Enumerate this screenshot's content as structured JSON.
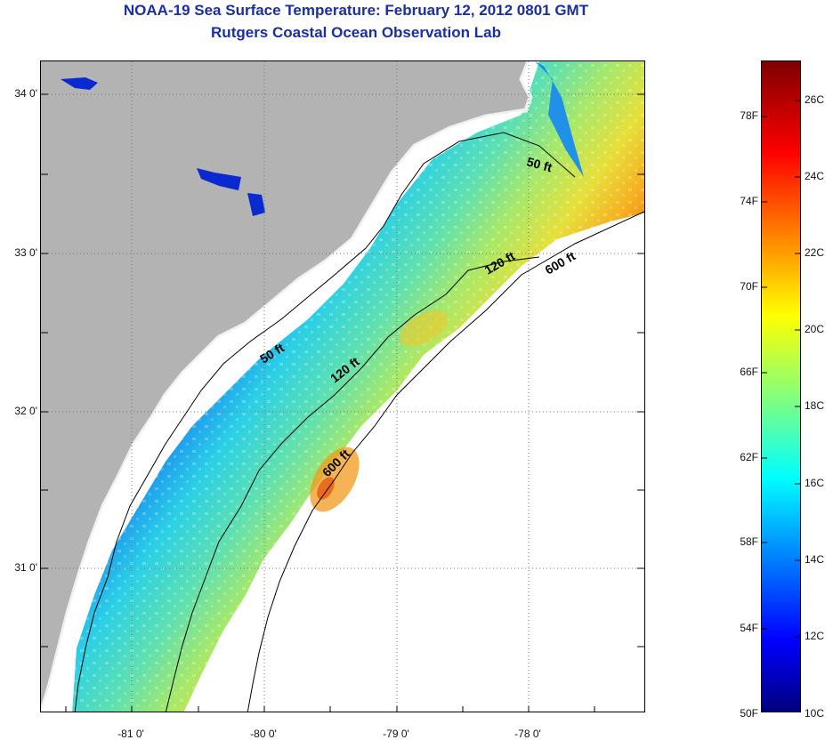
{
  "title": {
    "line1": "NOAA-19 Sea Surface Temperature:  February 12, 2012 0801 GMT",
    "line2": "Rutgers Coastal Ocean Observation Lab"
  },
  "map": {
    "lat_labels": [
      {
        "id": "lat-34",
        "text": "34 0'",
        "lat": 34.0
      },
      {
        "id": "lat-33",
        "text": "33 0'",
        "lat": 33.0
      },
      {
        "id": "lat-32",
        "text": "32 0'",
        "lat": 32.0
      },
      {
        "id": "lat-31",
        "text": "31 0'",
        "lat": 31.0
      }
    ],
    "lon_labels": [
      {
        "id": "lon-81",
        "text": "-81 0'",
        "lon": -81.0
      },
      {
        "id": "lon-80",
        "text": "-80 0'",
        "lon": -80.0
      },
      {
        "id": "lon-79",
        "text": "-79 0'",
        "lon": -79.0
      },
      {
        "id": "lon-78",
        "text": "-78 0'",
        "lon": -78.0
      }
    ],
    "contour_labels": [
      "50 ft",
      "50 ft",
      "120 ft",
      "120 ft",
      "600 ft",
      "600 ft"
    ],
    "land_color": "#b3b3b3",
    "nodata_color": "#ffffff"
  },
  "colorbar": {
    "f_labels": [
      "78F",
      "74F",
      "70F",
      "66F",
      "62F",
      "58F",
      "54F",
      "50F"
    ],
    "c_labels": [
      "26C",
      "24C",
      "22C",
      "20C",
      "18C",
      "16C",
      "14C",
      "12C",
      "10C"
    ],
    "range_c": [
      10,
      27
    ],
    "colormap": "jet"
  }
}
